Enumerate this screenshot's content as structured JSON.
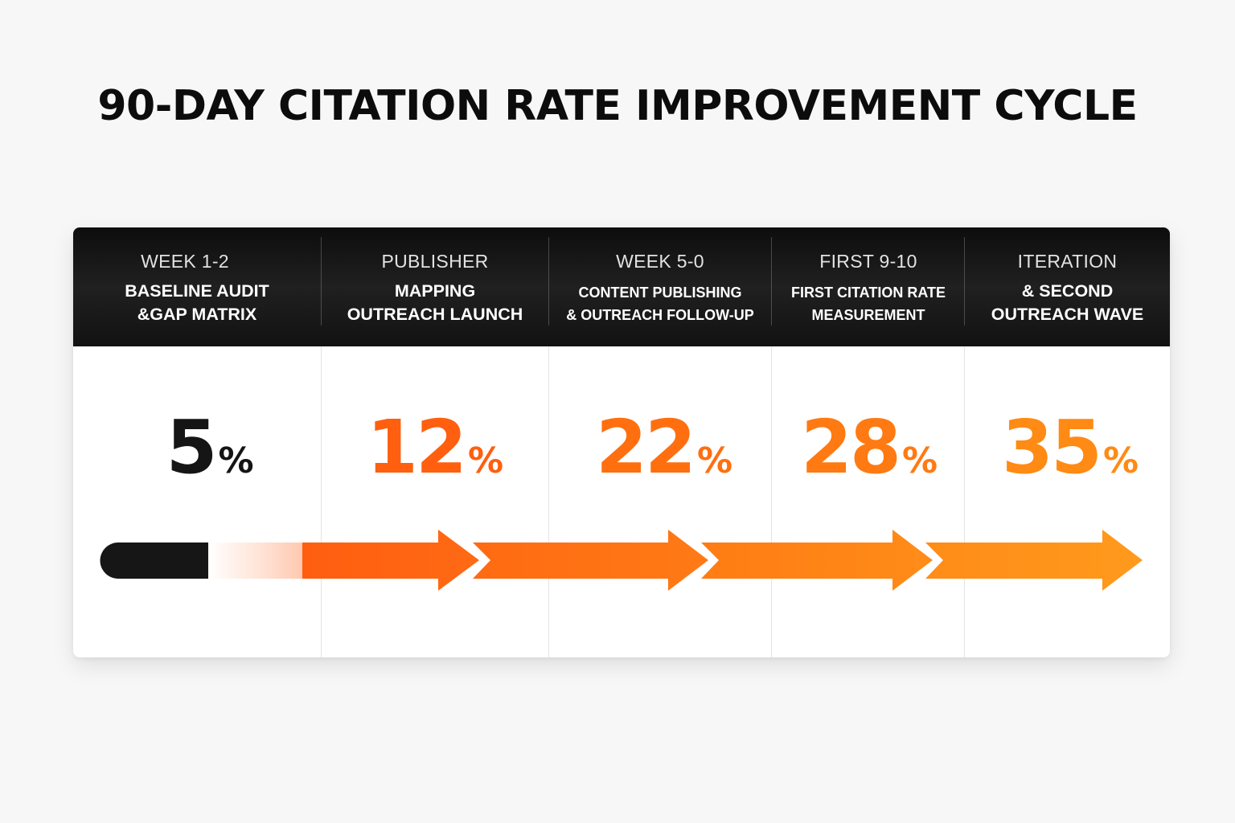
{
  "title": "90-DAY CITATION RATE IMPROVEMENT CYCLE",
  "colors": {
    "header_bg": "#151515",
    "baseline": "#151515",
    "orange_1": "#ff5f0f",
    "orange_2": "#ff7218",
    "orange_3": "#ff8a1a",
    "orange_4": "#ff9a1c"
  },
  "phases": [
    {
      "period": "WEEK 1-2",
      "name": "BASELINE AUDIT\n&GAP MATRIX",
      "rate": "5",
      "unit": "%",
      "color": "#151515"
    },
    {
      "period": "PUBLISHER",
      "name": "MAPPING\nOUTREACH LAUNCH",
      "rate": "12",
      "unit": "%",
      "color": "#ff5f0f"
    },
    {
      "period": "WEEK 5-0",
      "name": "CONTENT PUBLISHING\n& OUTREACH FOLLOW-UP",
      "rate": "22",
      "unit": "%",
      "color": "#ff6f10"
    },
    {
      "period": "FIRST 9-10",
      "name": "FIRST CITATION RATE\nMEASUREMENT",
      "rate": "28",
      "unit": "%",
      "color": "#ff7a12"
    },
    {
      "period": "ITERATION",
      "name": "& SECOND\nOUTREACH WAVE",
      "rate": "35",
      "unit": "%",
      "color": "#ff8a14"
    }
  ],
  "chart_data": {
    "type": "bar",
    "categories": [
      "WEEK 1-2",
      "PUBLISHER",
      "WEEK 5-0",
      "FIRST 9-10",
      "ITERATION"
    ],
    "values": [
      5,
      12,
      22,
      28,
      35
    ],
    "title": "90-DAY CITATION RATE IMPROVEMENT CYCLE",
    "xlabel": "",
    "ylabel": ""
  }
}
